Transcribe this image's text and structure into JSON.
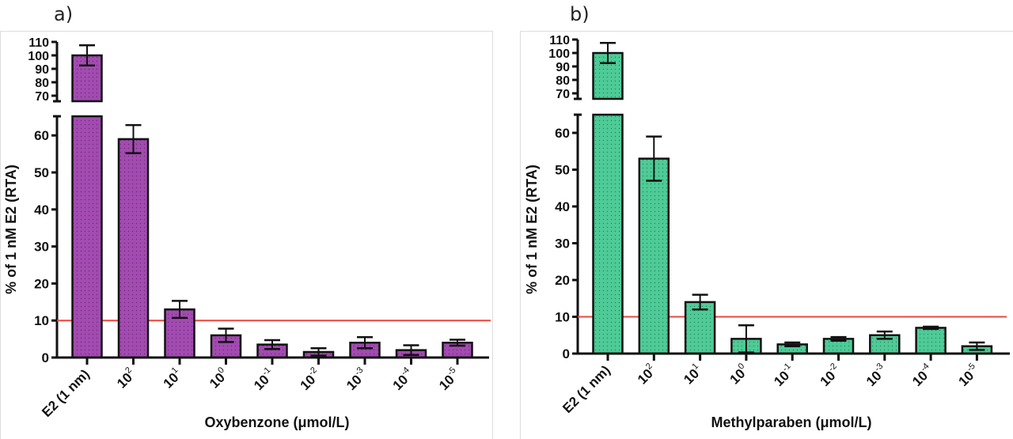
{
  "chart_data": [
    {
      "panel_label": "a)",
      "type": "bar",
      "title": "",
      "xlabel": "Oxybenzone (μmol/L)",
      "ylabel": "% of 1 nM E2 (RTA)",
      "categories": [
        {
          "base": "E2 (1 nm)",
          "exp": ""
        },
        {
          "base": "10",
          "exp": "2"
        },
        {
          "base": "10",
          "exp": "1"
        },
        {
          "base": "10",
          "exp": "0"
        },
        {
          "base": "10",
          "exp": "-1"
        },
        {
          "base": "10",
          "exp": "-2"
        },
        {
          "base": "10",
          "exp": "-3"
        },
        {
          "base": "10",
          "exp": "-4"
        },
        {
          "base": "10",
          "exp": "-5"
        }
      ],
      "values": [
        100,
        59,
        13,
        6,
        3.5,
        1.5,
        4,
        2,
        4
      ],
      "error": [
        7.5,
        3.8,
        2.3,
        1.8,
        1.2,
        1.0,
        1.5,
        1.3,
        0.8
      ],
      "y_axis_broken": true,
      "ylim_lower": [
        0,
        65
      ],
      "yticks_lower": [
        0,
        10,
        20,
        30,
        40,
        50,
        60
      ],
      "ylim_upper": [
        65,
        110
      ],
      "yticks_upper": [
        70,
        80,
        90,
        100,
        110
      ],
      "reference_line": {
        "y": 10,
        "color": "#e8473e"
      },
      "bar_color": "#a24bb0",
      "bar_dot_color": "#5b1c66",
      "grid": false,
      "legend": "none"
    },
    {
      "panel_label": "b)",
      "type": "bar",
      "title": "",
      "xlabel": "Methylparaben (μmol/L)",
      "ylabel": "% of 1 nM E2 (RTA)",
      "categories": [
        {
          "base": "E2 (1 nm)",
          "exp": ""
        },
        {
          "base": "10",
          "exp": "2"
        },
        {
          "base": "10",
          "exp": "1"
        },
        {
          "base": "10",
          "exp": "0"
        },
        {
          "base": "10",
          "exp": "-1"
        },
        {
          "base": "10",
          "exp": "-2"
        },
        {
          "base": "10",
          "exp": "-3"
        },
        {
          "base": "10",
          "exp": "-4"
        },
        {
          "base": "10",
          "exp": "-5"
        }
      ],
      "values": [
        100,
        53,
        14,
        4,
        2.5,
        4,
        5,
        7,
        2
      ],
      "error": [
        7.5,
        6,
        2,
        3.7,
        0.5,
        0.5,
        1,
        0.3,
        1
      ],
      "y_axis_broken": true,
      "ylim_lower": [
        0,
        65
      ],
      "yticks_lower": [
        0,
        10,
        20,
        30,
        40,
        50,
        60
      ],
      "ylim_upper": [
        65,
        110
      ],
      "yticks_upper": [
        70,
        80,
        90,
        100,
        110
      ],
      "reference_line": {
        "y": 10,
        "color": "#e8473e"
      },
      "bar_color": "#4ecb97",
      "bar_dot_color": "#1d6a4a",
      "grid": false,
      "legend": "none"
    }
  ]
}
